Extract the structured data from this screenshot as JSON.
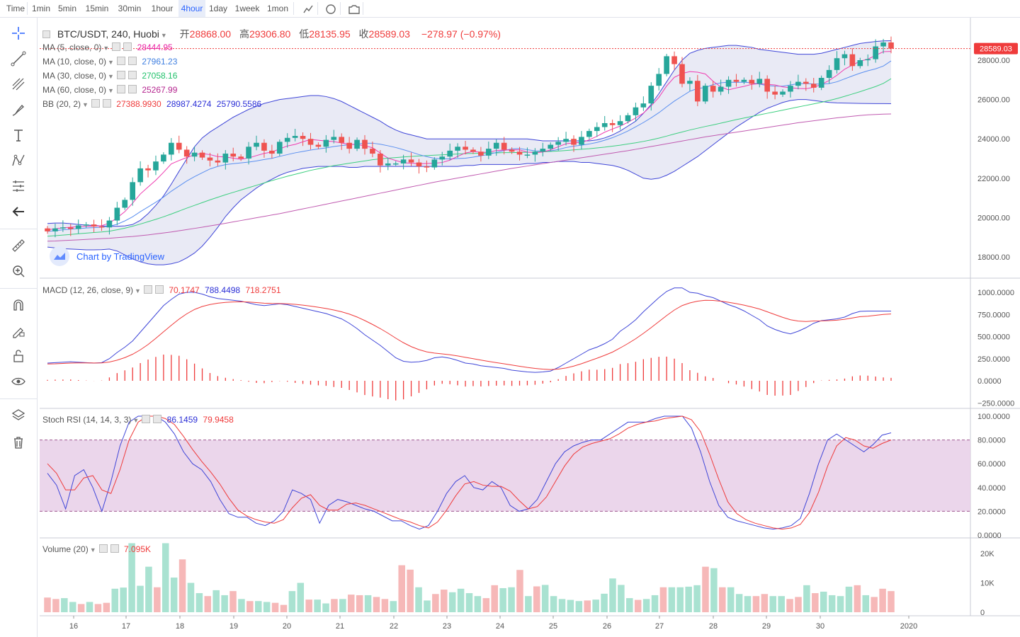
{
  "timeframes": [
    "Time",
    "1min",
    "5min",
    "15min",
    "30min",
    "1hour",
    "4hour",
    "1day",
    "1week",
    "1mon"
  ],
  "active_timeframe": "4hour",
  "symbol": {
    "title": "BTC/USDT, 240, Huobi",
    "open_label": "开",
    "open": "28868.00",
    "high_label": "高",
    "high": "29306.80",
    "low_label": "低",
    "low": "28135.95",
    "close_label": "收",
    "close": "28589.03",
    "change": "−278.97 (−0.97%)"
  },
  "indicators": {
    "ma5": {
      "label": "MA (5, close, 0)",
      "value": "28444.95",
      "color": "#e91ea0"
    },
    "ma10": {
      "label": "MA (10, close, 0)",
      "value": "27961.23",
      "color": "#3f7fe0"
    },
    "ma30": {
      "label": "MA (30, close, 0)",
      "value": "27058.16",
      "color": "#21c16b"
    },
    "ma60": {
      "label": "MA (60, close, 0)",
      "value": "25267.99",
      "color": "#b5258f"
    },
    "bb": {
      "label": "BB (20, 2)",
      "values": [
        "27388.9930",
        "28987.4274",
        "25790.5586"
      ],
      "colors": [
        "#ef3b3b",
        "#2b2fd6",
        "#2b2fd6"
      ]
    },
    "macd": {
      "label": "MACD (12, 26, close, 9)",
      "values": [
        "70.1747",
        "788.4498",
        "718.2751"
      ],
      "colors": [
        "#ef3b3b",
        "#2b2fd6",
        "#ef3b3b"
      ]
    },
    "stoch": {
      "label": "Stoch RSI (14, 14, 3, 3)",
      "values": [
        "86.1459",
        "79.9458"
      ],
      "colors": [
        "#2b2fd6",
        "#ef3b3b"
      ]
    },
    "volume": {
      "label": "Volume (20)",
      "value": "7.095K",
      "color": "#ef3b3b"
    }
  },
  "watermark": "Chart by TradingView",
  "price_marker": "28589.03",
  "colors": {
    "up": "#26a69a",
    "down": "#ef5350",
    "vol_up": "#a9e2d1",
    "vol_down": "#f6b8b8",
    "bb_fill": "#e1e3f2",
    "stoch_band": "#e8cfe8"
  },
  "chart_data": {
    "type": "candlestick",
    "title": "BTC/USDT, 240, Huobi",
    "x_ticks": [
      "16",
      "17",
      "18",
      "19",
      "20",
      "21",
      "22",
      "23",
      "24",
      "25",
      "26",
      "27",
      "28",
      "29",
      "30",
      "2020"
    ],
    "y_ticks_price": [
      "28000.00",
      "26000.00",
      "24000.00",
      "22000.00",
      "20000.00",
      "18000.00"
    ],
    "y_ticks_macd": [
      "1000.0000",
      "750.0000",
      "500.0000",
      "250.0000",
      "0.0000",
      "−250.0000"
    ],
    "y_ticks_stoch": [
      "100.0000",
      "80.0000",
      "60.0000",
      "40.0000",
      "20.0000",
      "0.0000"
    ],
    "y_ticks_volume": [
      "20K",
      "10K",
      "0"
    ],
    "closes": [
      19300,
      19450,
      19500,
      19420,
      19600,
      19650,
      19550,
      19500,
      19850,
      20500,
      20900,
      21800,
      22500,
      22400,
      22850,
      23200,
      23800,
      23450,
      23100,
      23300,
      23050,
      22900,
      22800,
      23250,
      23100,
      23000,
      23600,
      23800,
      23400,
      23250,
      23850,
      24050,
      24150,
      24000,
      23700,
      23600,
      23950,
      24100,
      23800,
      23500,
      23950,
      23500,
      23250,
      22650,
      22750,
      22750,
      22950,
      22800,
      22600,
      22550,
      22950,
      23100,
      23400,
      23600,
      23450,
      23350,
      23150,
      23500,
      23800,
      23450,
      23350,
      23200,
      23200,
      23350,
      23500,
      23700,
      23850,
      24000,
      23700,
      24100,
      24400,
      24600,
      24800,
      24700,
      24900,
      25200,
      25600,
      25800,
      26700,
      27300,
      28200,
      27800,
      26800,
      26950,
      25900,
      26700,
      26400,
      26650,
      27000,
      26900,
      27000,
      26800,
      27050,
      26400,
      26250,
      26400,
      26700,
      26900,
      26800,
      26600,
      27100,
      27500,
      28100,
      28300,
      27700,
      28000,
      28050,
      28700,
      28900,
      28589
    ],
    "ma5": [
      19380,
      19430,
      19480,
      19510,
      19540,
      19560,
      19560,
      19590,
      19720,
      19990,
      20300,
      20730,
      21200,
      21550,
      21900,
      22300,
      22730,
      22900,
      23050,
      23200,
      23250,
      23200,
      23100,
      23080,
      23020,
      22960,
      23030,
      23150,
      23260,
      23330,
      23490,
      23640,
      23720,
      23850,
      23970,
      23930,
      23890,
      23860,
      23790,
      23720,
      23710,
      23650,
      23550,
      23280,
      23020,
      22900,
      22790,
      22760,
      22740,
      22750,
      22760,
      22800,
      22920,
      23110,
      23280,
      23360,
      23320,
      23320,
      23410,
      23430,
      23440,
      23440,
      23330,
      23300,
      23330,
      23440,
      23600,
      23750,
      23800,
      23820,
      23950,
      24130,
      24340,
      24500,
      24650,
      24840,
      25060,
      25310,
      25680,
      26110,
      26690,
      27130,
      27320,
      27420,
      27390,
      27300,
      26930,
      26640,
      26490,
      26590,
      26670,
      26770,
      26810,
      26770,
      26740,
      26640,
      26600,
      26560,
      26550,
      26620,
      26770,
      26970,
      27230,
      27540,
      27750,
      27950,
      28050,
      28240,
      28430,
      28445
    ],
    "ma10": [
      19300,
      19330,
      19380,
      19410,
      19440,
      19470,
      19490,
      19510,
      19560,
      19660,
      19830,
      20040,
      20300,
      20540,
      20780,
      21040,
      21340,
      21600,
      21860,
      22080,
      22280,
      22470,
      22600,
      22690,
      22740,
      22780,
      22820,
      22880,
      22950,
      23010,
      23110,
      23200,
      23290,
      23360,
      23430,
      23490,
      23540,
      23610,
      23660,
      23700,
      23740,
      23780,
      23780,
      23730,
      23650,
      23560,
      23450,
      23330,
      23200,
      23100,
      23010,
      22980,
      22980,
      23000,
      23020,
      23070,
      23140,
      23210,
      23310,
      23410,
      23490,
      23510,
      23450,
      23390,
      23380,
      23390,
      23460,
      23560,
      23630,
      23680,
      23740,
      23820,
      23930,
      24060,
      24220,
      24400,
      24610,
      24830,
      25070,
      25330,
      25630,
      25920,
      26170,
      26420,
      26560,
      26610,
      26760,
      26850,
      26880,
      26870,
      26880,
      26850,
      26780,
      26710,
      26680,
      26680,
      26740,
      26810,
      26810,
      26790,
      26780,
      26810,
      26900,
      27050,
      27200,
      27340,
      27460,
      27560,
      27700,
      27961
    ],
    "ma30": [
      19050,
      19080,
      19110,
      19140,
      19180,
      19210,
      19240,
      19270,
      19310,
      19380,
      19460,
      19560,
      19670,
      19790,
      19910,
      20040,
      20180,
      20330,
      20480,
      20620,
      20760,
      20900,
      21030,
      21160,
      21280,
      21400,
      21520,
      21640,
      21760,
      21880,
      21990,
      22100,
      22200,
      22300,
      22400,
      22480,
      22560,
      22640,
      22700,
      22760,
      22820,
      22880,
      22940,
      22980,
      23020,
      23050,
      23080,
      23110,
      23130,
      23150,
      23170,
      23190,
      23210,
      23230,
      23250,
      23260,
      23270,
      23280,
      23290,
      23300,
      23300,
      23310,
      23320,
      23330,
      23340,
      23360,
      23380,
      23410,
      23440,
      23470,
      23500,
      23540,
      23580,
      23630,
      23680,
      23740,
      23800,
      23870,
      23950,
      24040,
      24140,
      24250,
      24350,
      24450,
      24540,
      24630,
      24710,
      24800,
      24890,
      24980,
      25060,
      25140,
      25220,
      25300,
      25380,
      25460,
      25540,
      25620,
      25700,
      25780,
      25860,
      25950,
      26050,
      26160,
      26280,
      26400,
      26530,
      26660,
      26820,
      27058
    ],
    "ma60": [
      18800,
      18810,
      18830,
      18850,
      18870,
      18890,
      18910,
      18930,
      18950,
      18980,
      19010,
      19040,
      19080,
      19120,
      19170,
      19220,
      19270,
      19330,
      19390,
      19450,
      19510,
      19580,
      19640,
      19710,
      19780,
      19850,
      19920,
      19990,
      20060,
      20130,
      20200,
      20280,
      20360,
      20440,
      20520,
      20600,
      20680,
      20760,
      20840,
      20920,
      21000,
      21080,
      21160,
      21240,
      21320,
      21400,
      21480,
      21560,
      21640,
      21720,
      21800,
      21870,
      21940,
      22010,
      22080,
      22150,
      22220,
      22290,
      22360,
      22430,
      22500,
      22560,
      22620,
      22680,
      22740,
      22800,
      22860,
      22920,
      22980,
      23040,
      23100,
      23160,
      23220,
      23280,
      23340,
      23400,
      23470,
      23540,
      23610,
      23680,
      23750,
      23820,
      23890,
      23960,
      24030,
      24100,
      24160,
      24220,
      24280,
      24340,
      24400,
      24460,
      24520,
      24580,
      24640,
      24700,
      24760,
      24820,
      24870,
      24920,
      24970,
      25020,
      25070,
      25110,
      25150,
      25190,
      25220,
      25240,
      25255,
      25268
    ],
    "bb_upper": [
      19700,
      19720,
      19720,
      19690,
      19650,
      19620,
      19600,
      19580,
      19560,
      19560,
      19580,
      19650,
      19860,
      20200,
      20620,
      21100,
      21700,
      22350,
      22980,
      23600,
      24050,
      24350,
      24600,
      24850,
      25100,
      25300,
      25500,
      25650,
      25800,
      25900,
      26000,
      26050,
      26100,
      26150,
      26200,
      26200,
      26150,
      26050,
      25900,
      25700,
      25500,
      25300,
      25100,
      24900,
      24650,
      24450,
      24300,
      24200,
      24100,
      24000,
      24000,
      24000,
      24000,
      24000,
      24000,
      24000,
      24000,
      24000,
      24000,
      24000,
      24000,
      24000,
      24000,
      23950,
      23900,
      23900,
      23900,
      23900,
      23900,
      23900,
      23900,
      23950,
      24050,
      24200,
      24400,
      24650,
      24900,
      25300,
      25750,
      26300,
      26900,
      27500,
      28000,
      28350,
      28500,
      28600,
      28650,
      28700,
      28750,
      28750,
      28700,
      28650,
      28550,
      28500,
      28450,
      28400,
      28350,
      28300,
      28300,
      28300,
      28350,
      28450,
      28550,
      28650,
      28750,
      28850,
      28900,
      28950,
      28980,
      28987
    ],
    "bb_lower": [
      18500,
      18460,
      18420,
      18400,
      18380,
      18360,
      18360,
      18370,
      18400,
      18300,
      18100,
      17900,
      17750,
      17650,
      17600,
      17600,
      17650,
      17750,
      17950,
      18200,
      18550,
      19000,
      19500,
      20050,
      20500,
      20900,
      21200,
      21500,
      21750,
      21950,
      22150,
      22300,
      22400,
      22500,
      22550,
      22600,
      22600,
      22600,
      22600,
      22550,
      22550,
      22600,
      22600,
      22600,
      22600,
      22600,
      22600,
      22600,
      22600,
      22600,
      22600,
      22600,
      22600,
      22600,
      22650,
      22650,
      22700,
      22700,
      22700,
      22700,
      22700,
      22700,
      22750,
      22750,
      22800,
      22800,
      22850,
      22850,
      22850,
      22800,
      22800,
      22750,
      22700,
      22650,
      22550,
      22400,
      22200,
      22000,
      21950,
      22000,
      22150,
      22350,
      22600,
      22850,
      23100,
      23400,
      23700,
      24000,
      24300,
      24600,
      24850,
      25100,
      25350,
      25550,
      25700,
      25850,
      25950,
      26000,
      26000,
      25950,
      25900,
      25850,
      25830,
      25820,
      25810,
      25800,
      25795,
      25792,
      25791,
      25790
    ],
    "macd": [
      200,
      205,
      210,
      215,
      210,
      205,
      200,
      205,
      250,
      320,
      380,
      450,
      550,
      650,
      750,
      850,
      920,
      980,
      1000,
      1000,
      980,
      950,
      930,
      920,
      910,
      900,
      880,
      860,
      850,
      860,
      870,
      860,
      840,
      820,
      800,
      780,
      760,
      730,
      700,
      650,
      590,
      520,
      460,
      400,
      330,
      260,
      220,
      210,
      215,
      230,
      260,
      270,
      255,
      230,
      200,
      190,
      170,
      160,
      150,
      140,
      120,
      110,
      100,
      95,
      100,
      110,
      150,
      200,
      250,
      300,
      350,
      380,
      420,
      470,
      560,
      620,
      690,
      780,
      860,
      940,
      1010,
      1050,
      1050,
      1000,
      990,
      960,
      940,
      900,
      860,
      830,
      790,
      740,
      690,
      620,
      580,
      550,
      530,
      560,
      600,
      650,
      680,
      690,
      700,
      720,
      760,
      785,
      788,
      788,
      788,
      788
    ],
    "signal": [
      190,
      192,
      196,
      200,
      202,
      202,
      201,
      202,
      212,
      233,
      262,
      300,
      350,
      410,
      480,
      554,
      627,
      697,
      757,
      806,
      840,
      862,
      877,
      886,
      891,
      893,
      890,
      884,
      877,
      874,
      873,
      870,
      864,
      855,
      844,
      831,
      817,
      800,
      780,
      754,
      721,
      681,
      637,
      590,
      538,
      482,
      430,
      386,
      352,
      327,
      313,
      304,
      294,
      281,
      265,
      250,
      234,
      219,
      205,
      192,
      178,
      164,
      151,
      140,
      132,
      127,
      132,
      145,
      166,
      193,
      224,
      255,
      288,
      324,
      371,
      421,
      475,
      536,
      601,
      669,
      737,
      800,
      850,
      880,
      900,
      910,
      908,
      900,
      887,
      872,
      855,
      834,
      811,
      780,
      748,
      717,
      690,
      675,
      670,
      676,
      677,
      680,
      685,
      695,
      710,
      725,
      730,
      740,
      750,
      755
    ],
    "stoch_k": [
      52,
      42,
      22,
      50,
      55,
      40,
      20,
      45,
      75,
      95,
      100,
      100,
      100,
      95,
      85,
      70,
      60,
      55,
      45,
      30,
      18,
      15,
      15,
      10,
      8,
      12,
      20,
      38,
      35,
      30,
      10,
      25,
      30,
      28,
      25,
      22,
      20,
      16,
      12,
      12,
      8,
      5,
      8,
      20,
      35,
      45,
      50,
      40,
      38,
      45,
      40,
      25,
      20,
      22,
      30,
      45,
      60,
      70,
      75,
      78,
      80,
      80,
      85,
      90,
      95,
      95,
      95,
      98,
      100,
      100,
      100,
      90,
      70,
      45,
      25,
      15,
      12,
      10,
      8,
      6,
      5,
      6,
      8,
      14,
      35,
      60,
      80,
      85,
      80,
      75,
      70,
      76,
      84,
      86
    ],
    "stoch_d": [
      60,
      52,
      38,
      38,
      48,
      50,
      38,
      35,
      55,
      80,
      95,
      100,
      100,
      98,
      93,
      83,
      72,
      62,
      53,
      43,
      31,
      21,
      16,
      13,
      11,
      10,
      13,
      23,
      31,
      34,
      25,
      21,
      21,
      26,
      27,
      25,
      22,
      19,
      16,
      13,
      11,
      8,
      6,
      11,
      21,
      33,
      43,
      45,
      42,
      41,
      41,
      37,
      29,
      22,
      24,
      32,
      45,
      58,
      68,
      74,
      77,
      79,
      81,
      85,
      90,
      93,
      95,
      96,
      98,
      99,
      100,
      97,
      87,
      68,
      47,
      28,
      18,
      13,
      10,
      8,
      6,
      5,
      6,
      9,
      19,
      36,
      58,
      75,
      82,
      80,
      75,
      73,
      77,
      80
    ],
    "volume_k": [
      5,
      4.5,
      4.8,
      3.5,
      2.8,
      3.5,
      2.8,
      3.2,
      8,
      8.4,
      23.5,
      9,
      15.5,
      8.5,
      23.5,
      11.8,
      18,
      10,
      6.5,
      5.5,
      7.5,
      5.8,
      7.2,
      4.5,
      3.8,
      3.8,
      3.5,
      3.2,
      2.5,
      7.2,
      10,
      4.3,
      4.3,
      3,
      4.5,
      4.5,
      6,
      5.8,
      5.8,
      5.2,
      4.5,
      3.8,
      16,
      14.5,
      8.5,
      4,
      6.2,
      7.7,
      6.8,
      8,
      6.5,
      5.5,
      4.8,
      9.2,
      8.2,
      8.5,
      14.4,
      5.5,
      8.8,
      9.3,
      5.5,
      4.5,
      4.2,
      3.8,
      4,
      4.3,
      6.3,
      11.5,
      9.3,
      4.8,
      4.2,
      4.5,
      5.8,
      8.5,
      8.5,
      8.5,
      8.7,
      9.2,
      15.5,
      15,
      8.5,
      8.5,
      6.2,
      5.5,
      5.5,
      6.2,
      5.5,
      5.5,
      4.5,
      5.2,
      9.2,
      6.5,
      7,
      5.8,
      5.5,
      8.7,
      9.2,
      5.8,
      5.2,
      8,
      7.2
    ],
    "volume_up": [
      0,
      0,
      1,
      1,
      0,
      1,
      0,
      0,
      1,
      1,
      1,
      1,
      1,
      0,
      1,
      1,
      0,
      1,
      1,
      0,
      1,
      1,
      0,
      1,
      0,
      1,
      1,
      0,
      0,
      1,
      1,
      0,
      1,
      1,
      0,
      1,
      0,
      0,
      1,
      0,
      0,
      1,
      0,
      0,
      1,
      1,
      0,
      0,
      1,
      1,
      1,
      1,
      0,
      0,
      1,
      1,
      0,
      1,
      0,
      1,
      1,
      1,
      1,
      1,
      0,
      1,
      1,
      1,
      1,
      1,
      0,
      1,
      1,
      0,
      1,
      1,
      1,
      1,
      0,
      1,
      0,
      1,
      1,
      1,
      0,
      0,
      1,
      1,
      0,
      0,
      1,
      0,
      1,
      1,
      1,
      1,
      0,
      1,
      0,
      0
    ]
  }
}
